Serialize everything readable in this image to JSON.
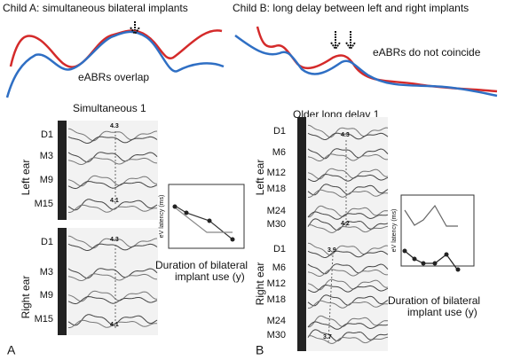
{
  "panel_a": {
    "title": "Child A: simultaneous bilateral implants",
    "annotation": "eABRs overlap",
    "waveform_title": "Simultaneous 1",
    "left_ear": {
      "label": "Left ear",
      "rows": [
        "D1",
        "M3",
        "M9",
        "M15"
      ],
      "peaks": [
        4.3,
        4.1
      ]
    },
    "right_ear": {
      "label": "Right ear",
      "rows": [
        "D1",
        "M3",
        "M9",
        "M15"
      ],
      "peaks": [
        4.3,
        4.1
      ]
    },
    "inset": {
      "y_label": "eV latency (ms)",
      "x_label": "Duration of bilateral implant use (y)"
    },
    "letter": "A"
  },
  "panel_b": {
    "title": "Child B: long delay between left and right implants",
    "annotation": "eABRs do not coincide",
    "waveform_title": "Older long delay 1",
    "left_ear": {
      "label": "Left ear",
      "rows": [
        "D1",
        "M6",
        "M12",
        "M18",
        "M24",
        "M30"
      ],
      "peaks": [
        4.3,
        4.2
      ]
    },
    "right_ear": {
      "label": "Right ear",
      "rows": [
        "D1",
        "M6",
        "M12",
        "M18",
        "M24",
        "M30"
      ],
      "peaks": [
        3.9,
        3.7
      ]
    },
    "inset": {
      "y_label": "eV latency (ms)",
      "x_label": "Duration of bilateral implant use (y)"
    },
    "letter": "B"
  }
}
